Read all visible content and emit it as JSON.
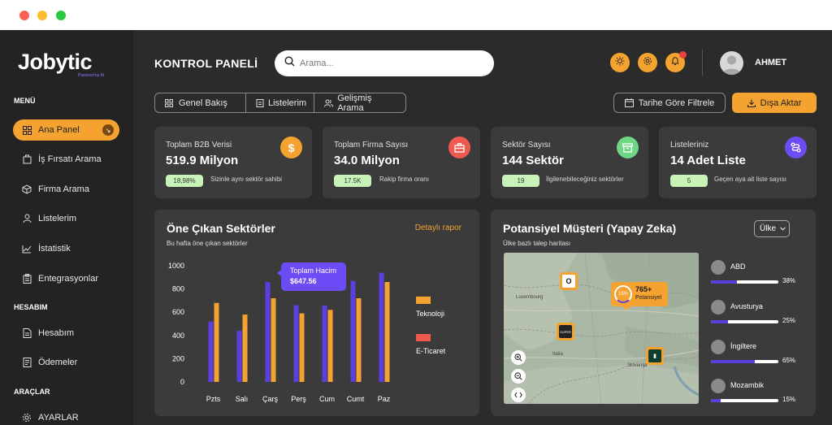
{
  "brand": {
    "name": "Jobytic",
    "tagline": "Powered by AI"
  },
  "sidebar": {
    "menu_title": "MENÜ",
    "menu_items": [
      {
        "label": "Ana Panel",
        "icon": "grid-icon",
        "active": true
      },
      {
        "label": "İş Fırsatı Arama",
        "icon": "briefcase-icon"
      },
      {
        "label": "Firma Arama",
        "icon": "cube-icon"
      },
      {
        "label": "Listelerim",
        "icon": "user-icon"
      },
      {
        "label": "İstatistik",
        "icon": "chart-line-icon"
      },
      {
        "label": "Entegrasyonlar",
        "icon": "clipboard-icon"
      }
    ],
    "account_title": "HESABIM",
    "account_items": [
      {
        "label": "Hesabım",
        "icon": "document-icon"
      },
      {
        "label": "Ödemeler",
        "icon": "receipt-icon"
      }
    ],
    "tools_title": "ARAÇLAR",
    "tools_items": [
      {
        "label": "AYARLAR",
        "icon": "gear-icon"
      }
    ]
  },
  "header": {
    "title": "KONTROL PANELİ",
    "search_placeholder": "Arama...",
    "username": "AHMET"
  },
  "tabs": [
    {
      "label": "Genel Bakış",
      "icon": "grid-icon"
    },
    {
      "label": "Listelerim",
      "icon": "clipboard-icon"
    },
    {
      "label": "Gelişmiş Arama",
      "icon": "users-icon"
    }
  ],
  "actions": {
    "filter_label": "Tarihe Göre Filtrele",
    "export_label": "Dışa Aktar"
  },
  "stats": [
    {
      "label": "Toplam B2B Verisi",
      "value": "519.9 Milyon",
      "chip": "18,98%",
      "note": "Sizinle aynı sektör sahibi",
      "icon": "dollar-icon",
      "color": "#f4a330"
    },
    {
      "label": "Toplam Firma Sayısı",
      "value": "34.0 Milyon",
      "chip": "17.5K",
      "note": "Rakip firma oranı",
      "icon": "building-icon",
      "color": "#ef5a50"
    },
    {
      "label": "Sektör Sayısı",
      "value": "144 Sektör",
      "chip": "19",
      "note": "İlgilenebileceğiniz sektörler",
      "icon": "archive-icon",
      "color": "#6fd685"
    },
    {
      "label": "Listeleriniz",
      "value": "14 Adet Liste",
      "chip": "5",
      "note": "Geçen aya ait liste sayısı",
      "icon": "route-icon",
      "color": "#6b4cf5"
    }
  ],
  "sectors_panel": {
    "title": "Öne Çıkan Sektörler",
    "subtitle": "Bu hafta öne çıkan sektörler",
    "link": "Detaylı rapor",
    "tooltip_title": "Toplam Hacim",
    "tooltip_value": "$647.56"
  },
  "chart_data": {
    "type": "bar",
    "categories": [
      "Pzts",
      "Salı",
      "Çarş",
      "Perş",
      "Cum",
      "Cumt",
      "Paz"
    ],
    "series": [
      {
        "name": "E-Ticaret",
        "color": "#5b3fe0",
        "values": [
          520,
          440,
          860,
          660,
          660,
          870,
          940
        ]
      },
      {
        "name": "Teknoloji",
        "color": "#f4a330",
        "values": [
          680,
          580,
          720,
          590,
          620,
          720,
          860
        ]
      }
    ],
    "y_ticks": [
      "1000",
      "800",
      "600",
      "400",
      "200",
      "0"
    ],
    "ylim": [
      0,
      1000
    ],
    "legend": [
      {
        "name": "Teknoloji",
        "color": "#f4a330"
      },
      {
        "name": "E-Ticaret",
        "color": "#ef5a50"
      }
    ],
    "legend_position": "right"
  },
  "potential_panel": {
    "title": "Potansiyel Müşteri (Yapay Zeka)",
    "subtitle": "Ülke bazlı talep haritası",
    "dropdown": "Ülke",
    "callout_percent": "15%",
    "callout_value": "765+",
    "callout_label": "Potansiyel",
    "countries": [
      {
        "name": "ABD",
        "percent": "38%",
        "fraction": 0.38
      },
      {
        "name": "Avusturya",
        "percent": "25%",
        "fraction": 0.25
      },
      {
        "name": "İngiltere",
        "percent": "65%",
        "fraction": 0.65
      },
      {
        "name": "Mozambik",
        "percent": "15%",
        "fraction": 0.15
      }
    ],
    "map_labels": [
      "Luxembourg",
      "Slovenija",
      "Italia"
    ]
  }
}
